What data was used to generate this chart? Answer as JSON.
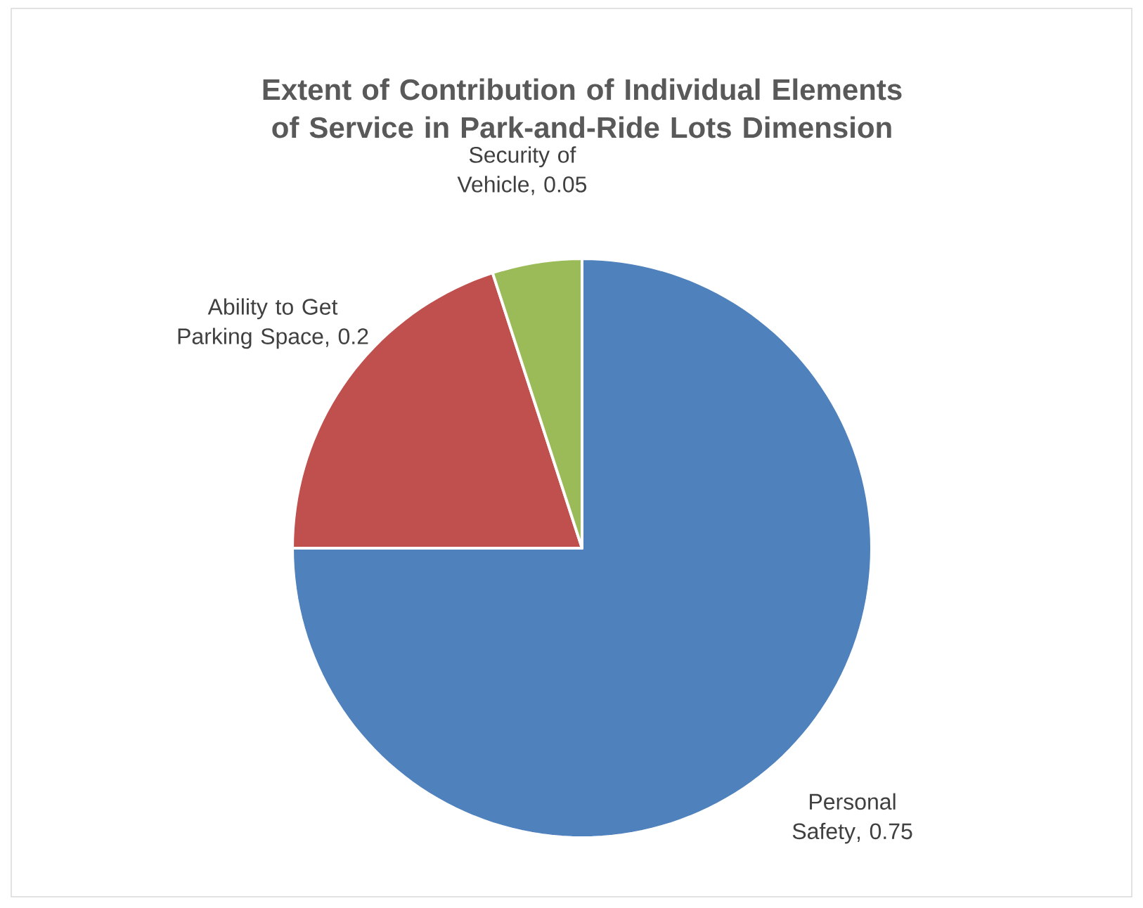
{
  "chart_data": {
    "type": "pie",
    "title": "Extent of Contribution of Individual Elements of Service in Park-and-Ride Lots Dimension",
    "categories": [
      "Personal Safety",
      "Ability to Get Parking Space",
      "Security of Vehicle"
    ],
    "values": [
      0.75,
      0.2,
      0.05
    ],
    "value_labels": [
      ", 0.75",
      ", 0.2",
      ", 0.05"
    ],
    "colors": [
      "#4f81bd",
      "#c0504d",
      "#9bbb59"
    ]
  }
}
